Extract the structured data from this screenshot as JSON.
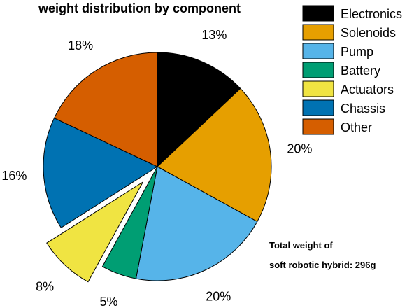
{
  "chart_data": {
    "type": "pie",
    "title": "weight distribution by component",
    "unit": "%",
    "slices": [
      {
        "label": "Electronics",
        "value": 13,
        "color": "#000000",
        "exploded": false
      },
      {
        "label": "Solenoids",
        "value": 20,
        "color": "#E69F00",
        "exploded": false
      },
      {
        "label": "Pump",
        "value": 20,
        "color": "#56B4E9",
        "exploded": false
      },
      {
        "label": "Battery",
        "value": 5,
        "color": "#009E73",
        "exploded": false
      },
      {
        "label": "Actuators",
        "value": 8,
        "color": "#F0E442",
        "exploded": true
      },
      {
        "label": "Chassis",
        "value": 16,
        "color": "#0072B2",
        "exploded": false
      },
      {
        "label": "Other",
        "value": 18,
        "color": "#D55E00",
        "exploded": false
      }
    ],
    "start": "12 o'clock",
    "direction": "clockwise",
    "legend_position": "top-right",
    "annotation": [
      "Total weight of",
      "soft robotic hybrid: 296g"
    ]
  }
}
